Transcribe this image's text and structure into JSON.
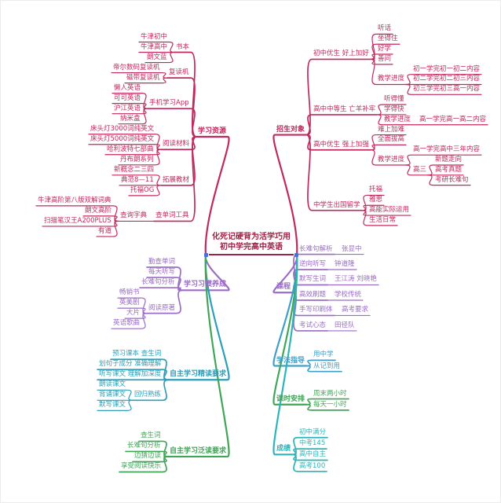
{
  "title": {
    "line1": "化死记硬背为活学巧用",
    "line2": "初中学完高中英语"
  },
  "palette": {
    "red": "#c0295b",
    "purple": "#9a6cc5",
    "teal": "#2d9fb8",
    "green": "#3fa557",
    "blue": "#3f9fc9",
    "cyan": "#2ab5b9",
    "center_text": "#9b2346",
    "anchor_blue": "#4c6ed6"
  },
  "left_branches": [
    {
      "label": "学习资源",
      "color": "red",
      "children": [
        {
          "label": "书本",
          "children": [
            {
              "label": "牛津初中"
            },
            {
              "label": "牛津高中"
            },
            {
              "label": "朗文蓝"
            }
          ]
        },
        {
          "label": "复读机",
          "children": [
            {
              "label": "帝尔数码复读机"
            },
            {
              "label": "磁带复读机"
            }
          ]
        },
        {
          "label": "手机学习App",
          "children": [
            {
              "label": "懒人英语"
            },
            {
              "label": "可可英语"
            },
            {
              "label": "沪江英语"
            },
            {
              "label": "纳米盒"
            }
          ]
        },
        {
          "label": "阅读材料",
          "children": [
            {
              "label": "床头灯3000词纯英文"
            },
            {
              "label": "床头灯5000词纯英文"
            },
            {
              "label": "哈利波特七部曲"
            },
            {
              "label": "丹布朗系列"
            }
          ]
        },
        {
          "label": "拓展教材",
          "children": [
            {
              "label": "新概念二三四"
            },
            {
              "label": "典范8—11"
            },
            {
              "label": "托福OG"
            }
          ]
        },
        {
          "label": "查单词工具",
          "children": [
            {
              "label": "查询字典",
              "children": [
                {
                  "label": "牛津高阶第八版双解词典"
                },
                {
                  "label": "朗文高阶"
                },
                {
                  "label": "扫描笔汉王A200PLUS"
                },
                {
                  "label": "有道"
                }
              ]
            }
          ]
        }
      ]
    },
    {
      "label": "学习习惯养成",
      "color": "purple",
      "children": [
        {
          "label": "勤查单词"
        },
        {
          "label": "每天听写"
        },
        {
          "label": "长难句分析"
        },
        {
          "label": "阅读原著",
          "children": [
            {
              "label": "畅销书"
            },
            {
              "label": "英美剧"
            },
            {
              "label": "大片"
            },
            {
              "label": "英语歌曲"
            }
          ]
        }
      ]
    },
    {
      "label": "自主学习精读要求",
      "color": "teal",
      "children": [
        {
          "label": "预习课本 查生词"
        },
        {
          "label": "划句子成分 准确理解"
        },
        {
          "label": "听写课文 理解加深度"
        },
        {
          "label": "回归熟练",
          "children": [
            {
              "label": "朗读课文"
            },
            {
              "label": "背诵课文"
            },
            {
              "label": "默写课文"
            }
          ]
        }
      ]
    },
    {
      "label": "自主学习泛读要求",
      "color": "green",
      "children": [
        {
          "label": "查生词"
        },
        {
          "label": "长难句分析"
        },
        {
          "label": "边猜边读"
        },
        {
          "label": "享受阅读快乐"
        }
      ]
    }
  ],
  "right_branches": [
    {
      "label": "招生对象",
      "color": "red",
      "children": [
        {
          "label": "初中优生 好上加好",
          "children": [
            {
              "label": "听话"
            },
            {
              "label": "坐得住"
            },
            {
              "label": "好学"
            },
            {
              "label": "善问"
            },
            {
              "label": "教学进度",
              "children": [
                {
                  "label": "初一学完初一初二内容"
                },
                {
                  "label": "初二学完初二初三内容"
                },
                {
                  "label": "初三学完初三高一内容"
                }
              ]
            }
          ]
        },
        {
          "label": "高中中等生 亡羊补牢",
          "children": [
            {
              "label": "听得懂"
            },
            {
              "label": "学得快"
            },
            {
              "label": "教学进度",
              "children": [
                {
                  "label": "高一学完高一高二内容"
                }
              ]
            }
          ]
        },
        {
          "label": "高中优生 强上加强",
          "children": [
            {
              "label": "难上加难"
            },
            {
              "label": "全面拔高"
            },
            {
              "label": "教学进度",
              "children": [
                {
                  "label": "高一学完高中三年内容"
                },
                {
                  "label": "高三",
                  "children": [
                    {
                      "label": "新题走向"
                    },
                    {
                      "label": "高考真题"
                    },
                    {
                      "label": "考研长难句"
                    }
                  ]
                }
              ]
            }
          ]
        },
        {
          "label": "中学生出国留学",
          "children": [
            {
              "label": "托福"
            },
            {
              "label": "雅思"
            },
            {
              "label": "高能实际运用"
            },
            {
              "label": "生活日常"
            }
          ]
        }
      ]
    },
    {
      "label": "课程",
      "color": "purple",
      "children": [
        {
          "label": "长难句解析",
          "children": [
            {
              "label": "张显中"
            }
          ]
        },
        {
          "label": "逆向听写",
          "children": [
            {
              "label": "钟道隆"
            }
          ]
        },
        {
          "label": "默写生词",
          "children": [
            {
              "label": "王江涛 刘晓艳"
            }
          ]
        },
        {
          "label": "高效刷题",
          "children": [
            {
              "label": "学校传统"
            }
          ]
        },
        {
          "label": "手写印刷体",
          "children": [
            {
              "label": "高考要求"
            }
          ]
        },
        {
          "label": "考试心态",
          "children": [
            {
              "label": "田径队"
            }
          ]
        }
      ]
    },
    {
      "label": "学法指导",
      "color": "blue",
      "children": [
        {
          "label": "用中学"
        },
        {
          "label": "从记到用"
        }
      ]
    },
    {
      "label": "课时安排",
      "color": "green",
      "children": [
        {
          "label": "周末两小时"
        },
        {
          "label": "每天一小时"
        }
      ]
    },
    {
      "label": "成绩",
      "color": "cyan",
      "children": [
        {
          "label": "初中满分"
        },
        {
          "label": "中考145"
        },
        {
          "label": "高中自主"
        },
        {
          "label": "高考100"
        }
      ]
    }
  ]
}
